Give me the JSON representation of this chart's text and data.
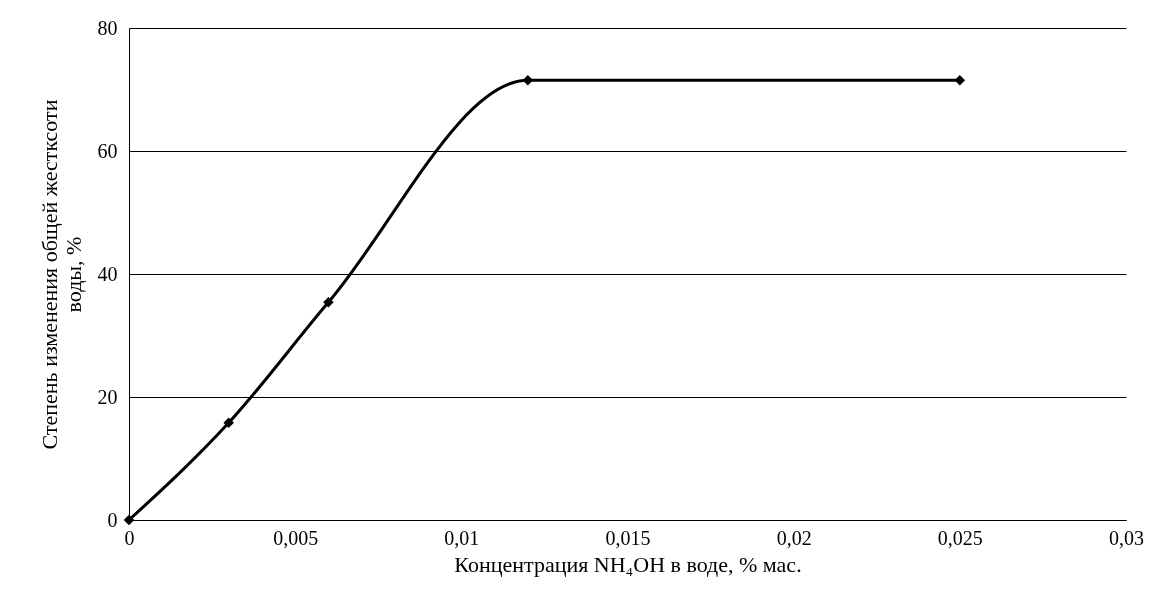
{
  "chart_data": {
    "type": "line",
    "xlabel": "Концентрация NH₄OH в воде, % мас.",
    "ylabel": "Степень изменения общей жестксоти\nводы, %",
    "x": [
      0,
      0.003,
      0.006,
      0.012,
      0.025
    ],
    "series": [
      {
        "color": "#000000",
        "values": [
          0,
          15.8,
          35.4,
          71.5,
          71.5
        ]
      }
    ],
    "xlim": [
      0,
      0.03
    ],
    "xticks": [
      0,
      {
        "value": 0.005,
        "label": "0,005"
      },
      {
        "value": 0.01,
        "label": "0,01"
      },
      {
        "value": 0.015,
        "label": "0,015"
      },
      {
        "value": 0.02,
        "label": "0,02"
      },
      {
        "value": 0.025,
        "label": "0,025"
      },
      {
        "value": 0.03,
        "label": "0,03"
      }
    ],
    "ylim": [
      0,
      80
    ],
    "yticks": [
      0,
      20,
      40,
      60,
      80
    ],
    "grid": "y",
    "marker": "diamond",
    "line_style": "solid"
  }
}
